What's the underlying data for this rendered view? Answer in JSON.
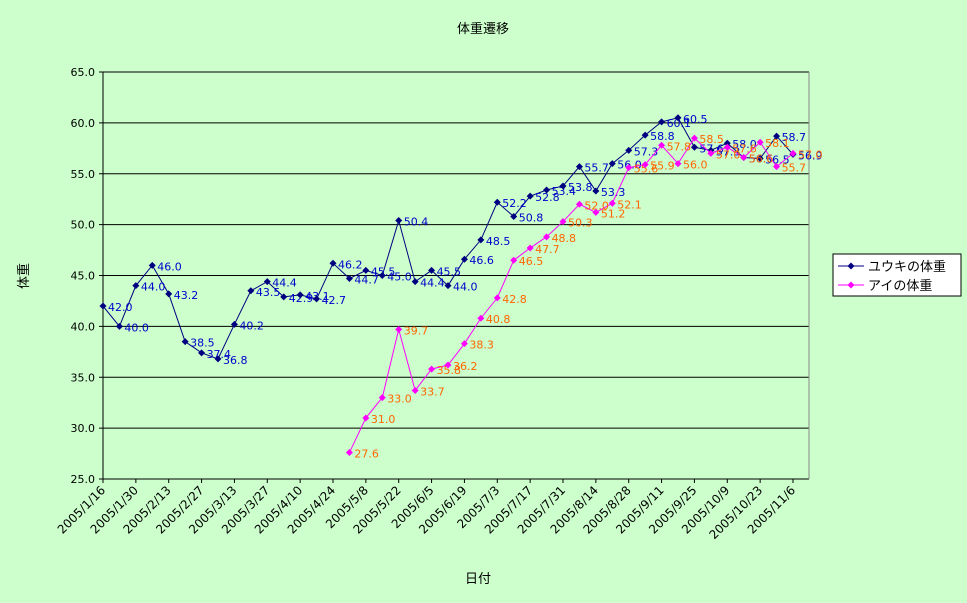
{
  "chart_data": {
    "type": "line",
    "title": "体重遷移",
    "x_label": "日付",
    "y_label": "体重",
    "categories": [
      "2005/1/16",
      null,
      "2005/1/30",
      null,
      "2005/2/13",
      null,
      "2005/2/27",
      null,
      "2005/3/13",
      null,
      "2005/3/27",
      null,
      "2005/4/10",
      null,
      "2005/4/24",
      null,
      "2005/5/8",
      null,
      "2005/5/22",
      null,
      "2005/6/5",
      null,
      "2005/6/19",
      null,
      "2005/7/3",
      null,
      "2005/7/17",
      null,
      "2005/7/31",
      null,
      "2005/8/14",
      null,
      "2005/8/28",
      null,
      "2005/9/11",
      null,
      "2005/9/25",
      null,
      "2005/10/9",
      null,
      "2005/10/23",
      null,
      "2005/11/6"
    ],
    "ylim": [
      25,
      65
    ],
    "yticks": [
      {
        "value": 25,
        "label": "25.0"
      },
      {
        "value": 30,
        "label": "30.0"
      },
      {
        "value": 35,
        "label": "35.0"
      },
      {
        "value": 40,
        "label": "40.0"
      },
      {
        "value": 45,
        "label": "45.0"
      },
      {
        "value": 50,
        "label": "50.0"
      },
      {
        "value": 55,
        "label": "55.0"
      },
      {
        "value": 60,
        "label": "60.0"
      },
      {
        "value": 65,
        "label": "65.0"
      }
    ],
    "grid": true,
    "legend": "right",
    "series": [
      {
        "name": "ユウキの体重",
        "color": "#000080",
        "label_color": "#0000cc",
        "values": [
          42.0,
          40.0,
          44.0,
          46.0,
          43.2,
          38.5,
          37.4,
          36.8,
          40.2,
          43.5,
          44.4,
          42.9,
          43.1,
          42.7,
          46.2,
          44.7,
          45.5,
          45.0,
          50.4,
          44.4,
          45.5,
          44.0,
          46.6,
          48.5,
          52.2,
          50.8,
          52.8,
          53.4,
          53.8,
          55.7,
          53.3,
          56.0,
          57.3,
          58.8,
          60.1,
          60.5,
          57.6,
          57.3,
          58.0,
          56.6,
          56.5,
          58.7,
          56.9
        ],
        "value_labels": [
          "42.0",
          "40.0",
          "44.0",
          "46.0",
          "43.2",
          "38.5",
          "37.4",
          "36.8",
          "40.2",
          "43.5",
          "44.4",
          "42.9",
          "43.1",
          "42.7",
          "46.2",
          "44.7",
          "45.5",
          "45.0",
          "50.4",
          "44.4",
          "45.5",
          "44.0",
          "46.6",
          "48.5",
          "52.2",
          "50.8",
          "52.8",
          "53.4",
          "53.8",
          "55.7",
          "53.3",
          "56.0",
          "57.3",
          "58.8",
          "60.1",
          "60.5",
          "57.6",
          "57.3",
          "58.0",
          "56.6",
          "56.5",
          "58.7",
          "56.9"
        ]
      },
      {
        "name": "アイの体重",
        "color": "#ff00ff",
        "label_color": "#ff6600",
        "values": [
          null,
          null,
          null,
          null,
          null,
          null,
          null,
          null,
          null,
          null,
          null,
          null,
          null,
          null,
          null,
          27.6,
          31.0,
          33.0,
          39.7,
          33.7,
          35.8,
          36.2,
          38.3,
          40.8,
          42.8,
          46.5,
          47.7,
          48.8,
          50.3,
          52.0,
          51.2,
          52.1,
          55.6,
          55.9,
          57.8,
          56.0,
          58.5,
          57.0,
          57.6,
          56.6,
          58.1,
          55.7,
          57.0
        ],
        "value_labels": [
          null,
          null,
          null,
          null,
          null,
          null,
          null,
          null,
          null,
          null,
          null,
          null,
          null,
          null,
          null,
          "27.6",
          "31.0",
          "33.0",
          "39.7",
          "33.7",
          "35.8",
          "36.2",
          "38.3",
          "40.8",
          "42.8",
          "46.5",
          "47.7",
          "48.8",
          "50.3",
          "52.0",
          "51.2",
          "52.1",
          "55.6",
          "55.9",
          "57.8",
          "56.0",
          "58.5",
          "57.0",
          "57.6",
          "56.6",
          "58.1",
          "55.7",
          "57.0"
        ]
      }
    ]
  }
}
